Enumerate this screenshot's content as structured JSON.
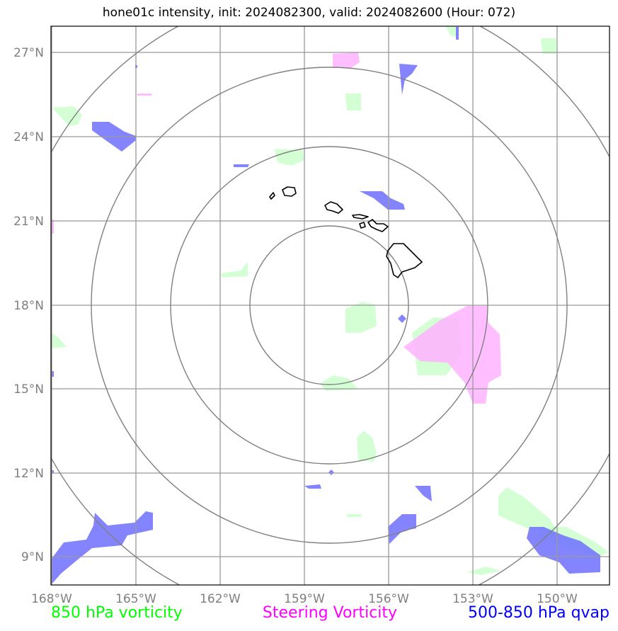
{
  "title": "hone01c intensity, init: 2024082300, valid: 2024082600 (Hour: 072)",
  "legend": [
    {
      "label": "850 hPa vorticity",
      "color": "#00ff00"
    },
    {
      "label": "Steering Vorticity",
      "color": "#ff00ff"
    },
    {
      "label": "500-850 hPa qvap",
      "color": "#0000ff"
    }
  ],
  "axes": {
    "lon_ticks": [
      "168°W",
      "165°W",
      "162°W",
      "159°W",
      "156°W",
      "153°W",
      "150°W"
    ],
    "lat_ticks": [
      "27°N",
      "24°N",
      "21°N",
      "18°N",
      "15°N",
      "12°N",
      "9°N"
    ]
  },
  "colors": {
    "vort850_fill": "#ccffcc",
    "steering_fill": "#ffb3ff",
    "qvap_fill": "#7373ff",
    "grid": "#999999",
    "range_rings": "#808080",
    "coast": "#000000"
  }
}
